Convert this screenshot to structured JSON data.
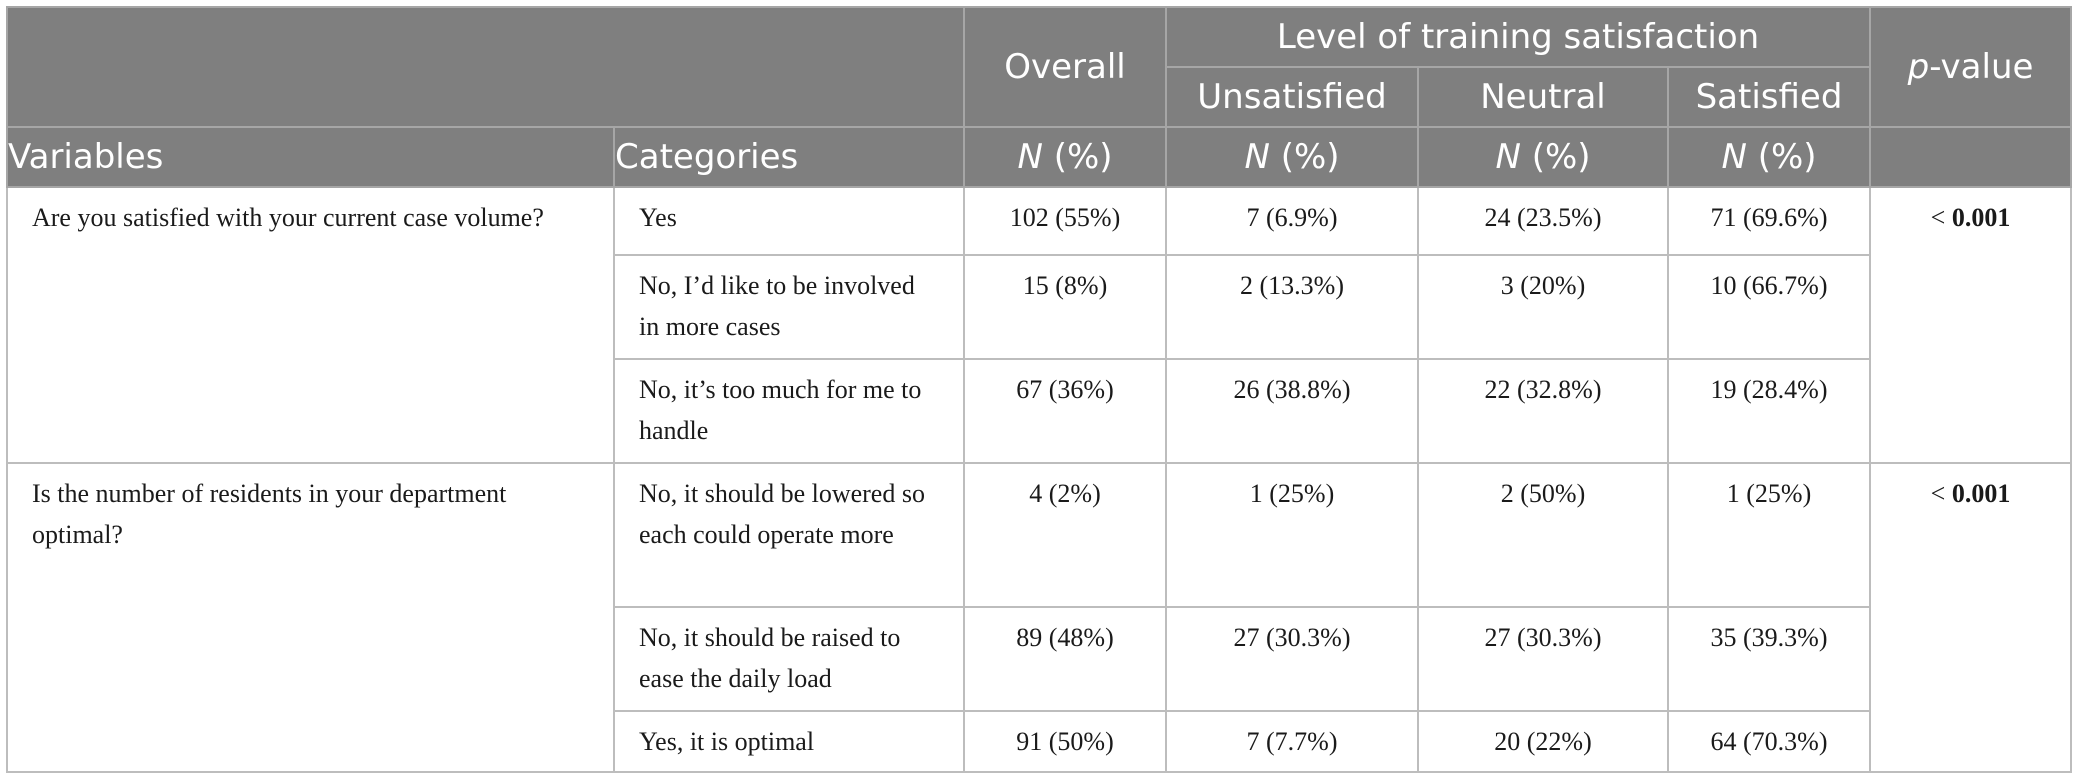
{
  "header": {
    "overall": "Overall",
    "level_group": "Level of training satisfaction",
    "pvalue_italic": "p",
    "pvalue_rest": "-value",
    "unsatisfied": "Unsatisfied",
    "neutral": "Neutral",
    "satisfied": "Satisfied",
    "variables": "Variables",
    "categories": "Categories",
    "n_italic": "N",
    "n_rest": " (%)"
  },
  "groups": [
    {
      "variable": "Are you satisfied with your current case volume?",
      "pvalue_prefix": "< ",
      "pvalue": "0.001",
      "rows": [
        {
          "category": "Yes",
          "overall": "102 (55%)",
          "unsatisfied": "7 (6.9%)",
          "neutral": "24 (23.5%)",
          "satisfied": "71 (69.6%)"
        },
        {
          "category": "No, I’d like to be involved in more cases",
          "overall": "15 (8%)",
          "unsatisfied": "2 (13.3%)",
          "neutral": "3 (20%)",
          "satisfied": "10 (66.7%)"
        },
        {
          "category": "No, it’s too much for me to handle",
          "overall": "67 (36%)",
          "unsatisfied": "26 (38.8%)",
          "neutral": "22 (32.8%)",
          "satisfied": "19 (28.4%)"
        }
      ]
    },
    {
      "variable": "Is the number of residents in your department optimal?",
      "pvalue_prefix": "< ",
      "pvalue": "0.001",
      "rows": [
        {
          "category": "No, it should be lowered so each could operate more",
          "overall": "4 (2%)",
          "unsatisfied": "1 (25%)",
          "neutral": "2 (50%)",
          "satisfied": "1 (25%)"
        },
        {
          "category": "No, it should be raised to ease the daily load",
          "overall": "89 (48%)",
          "unsatisfied": "27 (30.3%)",
          "neutral": "27 (30.3%)",
          "satisfied": "35 (39.3%)"
        },
        {
          "category": "Yes, it is optimal",
          "overall": "91 (50%)",
          "unsatisfied": "7 (7.7%)",
          "neutral": "20 (22%)",
          "satisfied": "64 (70.3%)"
        }
      ]
    }
  ]
}
